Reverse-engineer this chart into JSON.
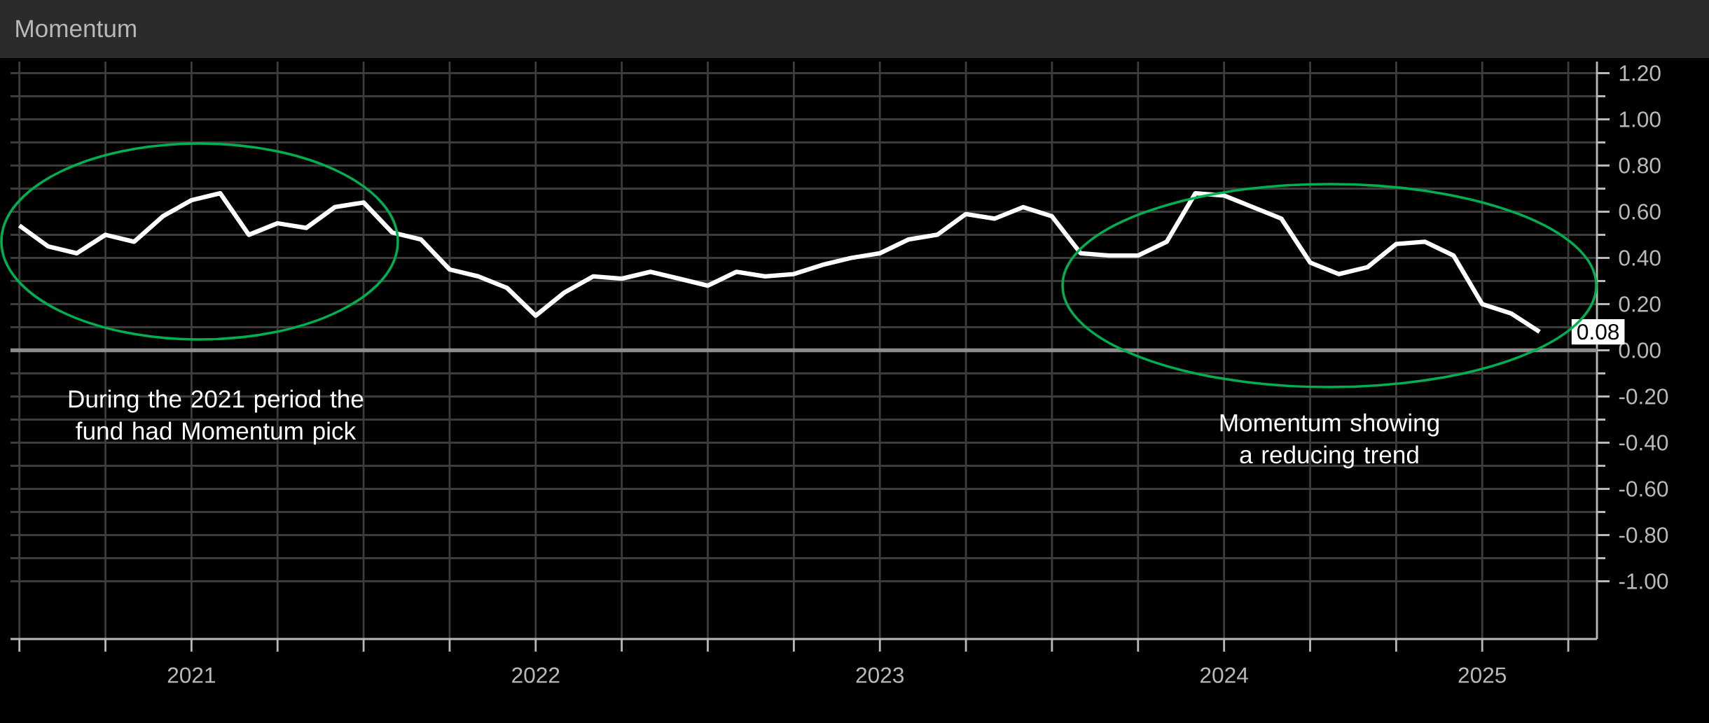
{
  "chart_data": {
    "type": "line",
    "title": "Momentum",
    "x": [
      "2021-01",
      "2021-02",
      "2021-03",
      "2021-04",
      "2021-05",
      "2021-06",
      "2021-07",
      "2021-08",
      "2021-09",
      "2021-10",
      "2021-11",
      "2021-12",
      "2022-01",
      "2022-02",
      "2022-03",
      "2022-04",
      "2022-05",
      "2022-06",
      "2022-07",
      "2022-08",
      "2022-09",
      "2022-10",
      "2022-11",
      "2022-12",
      "2023-01",
      "2023-02",
      "2023-03",
      "2023-04",
      "2023-05",
      "2023-06",
      "2023-07",
      "2023-08",
      "2023-09",
      "2023-10",
      "2023-11",
      "2023-12",
      "2024-01",
      "2024-02",
      "2024-03",
      "2024-04",
      "2024-05",
      "2024-06",
      "2024-07",
      "2024-08",
      "2024-09",
      "2024-10",
      "2024-11",
      "2024-12",
      "2025-01",
      "2025-02",
      "2025-03",
      "2025-04",
      "2025-05",
      "2025-06"
    ],
    "series": [
      {
        "color": "#ffffff",
        "values": [
          0.54,
          0.45,
          0.42,
          0.5,
          0.47,
          0.58,
          0.65,
          0.68,
          0.5,
          0.55,
          0.53,
          0.62,
          0.64,
          0.51,
          0.48,
          0.35,
          0.32,
          0.27,
          0.15,
          0.25,
          0.32,
          0.31,
          0.34,
          0.31,
          0.28,
          0.34,
          0.32,
          0.33,
          0.37,
          0.4,
          0.42,
          0.48,
          0.5,
          0.59,
          0.57,
          0.62,
          0.58,
          0.42,
          0.41,
          0.41,
          0.47,
          0.68,
          0.67,
          0.62,
          0.57,
          0.38,
          0.33,
          0.36,
          0.46,
          0.47,
          0.41,
          0.2,
          0.16,
          0.08
        ]
      }
    ],
    "xlim": [
      "2020-12-22",
      "2025-08-01"
    ],
    "xticks": [
      {
        "value": "2021-01-01",
        "label": null
      },
      {
        "value": "2021-04-01",
        "label": null
      },
      {
        "value": "2021-07-01",
        "label": "2021"
      },
      {
        "value": "2021-10-01",
        "label": null
      },
      {
        "value": "2022-01-01",
        "label": null
      },
      {
        "value": "2022-04-01",
        "label": null
      },
      {
        "value": "2022-07-01",
        "label": "2022"
      },
      {
        "value": "2022-10-01",
        "label": null
      },
      {
        "value": "2023-01-01",
        "label": null
      },
      {
        "value": "2023-04-01",
        "label": null
      },
      {
        "value": "2023-07-01",
        "label": "2023"
      },
      {
        "value": "2023-10-01",
        "label": null
      },
      {
        "value": "2024-01-01",
        "label": null
      },
      {
        "value": "2024-04-01",
        "label": null
      },
      {
        "value": "2024-07-01",
        "label": "2024"
      },
      {
        "value": "2024-10-01",
        "label": null
      },
      {
        "value": "2025-01-01",
        "label": null
      },
      {
        "value": "2025-04-01",
        "label": "2025"
      },
      {
        "value": "2025-07-01",
        "label": null
      }
    ],
    "ylim": [
      -1.25,
      1.25
    ],
    "yticks": [
      {
        "value": -1.0,
        "label": "-1.00"
      },
      {
        "value": -0.8,
        "label": "-0.80"
      },
      {
        "value": -0.6,
        "label": "-0.60"
      },
      {
        "value": -0.4,
        "label": "-0.40"
      },
      {
        "value": -0.2,
        "label": "-0.20"
      },
      {
        "value": 0.0,
        "label": "0.00"
      },
      {
        "value": 0.2,
        "label": "0.20"
      },
      {
        "value": 0.4,
        "label": "0.40"
      },
      {
        "value": 0.6,
        "label": "0.60"
      },
      {
        "value": 0.8,
        "label": "0.80"
      },
      {
        "value": 1.0,
        "label": "1.00"
      },
      {
        "value": 1.2,
        "label": "1.20"
      }
    ],
    "grid": true,
    "ref_lines": [
      {
        "axis": "y",
        "value": 0,
        "color": "#8c8c8c"
      }
    ],
    "annotations": [
      "During the 2021 period the fund had Momentum pick",
      "Momentum showing a reducing trend",
      {
        "text": "0.08",
        "x": "2025-06",
        "y": 0.08
      }
    ]
  }
}
